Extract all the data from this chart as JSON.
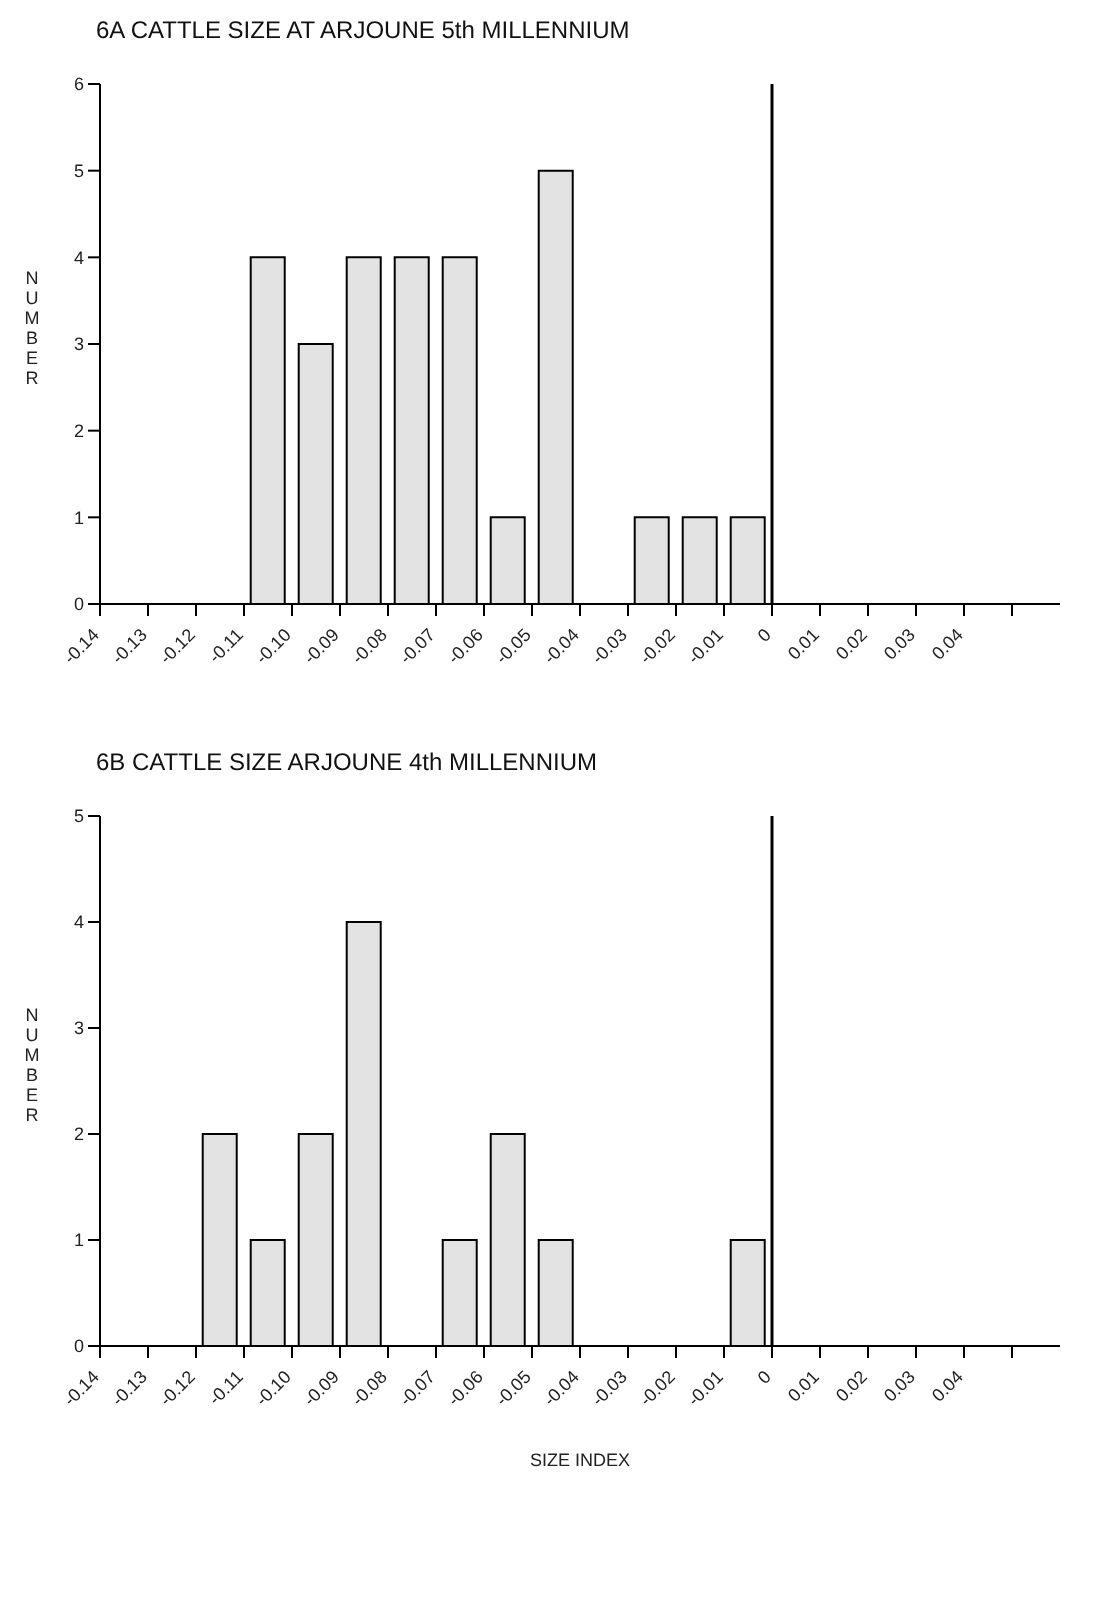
{
  "chart_data": [
    {
      "type": "histogram",
      "title": "6A CATTLE SIZE AT ARJOUNE 5th MILLENNIUM",
      "ylabel": "NUMBER",
      "color": "#e3e3e3",
      "bins": [
        -0.14,
        -0.13,
        -0.12,
        -0.11,
        -0.1,
        -0.09,
        -0.08,
        -0.07,
        -0.06,
        -0.05,
        -0.04,
        -0.03,
        -0.02,
        -0.01,
        0,
        0.01,
        0.02,
        0.03,
        0.04,
        0.05,
        0.06
      ],
      "values": [
        0,
        0,
        0,
        4,
        3,
        4,
        4,
        4,
        1,
        5,
        0,
        1,
        1,
        1,
        0,
        0,
        0,
        0,
        0,
        0
      ],
      "xlim": [
        -0.14,
        0.06
      ],
      "xticks": [
        {
          "value": -0.14,
          "label": "-0.14"
        },
        {
          "value": -0.13,
          "label": "-0.13"
        },
        {
          "value": -0.12,
          "label": "-0.12"
        },
        {
          "value": -0.11,
          "label": "-0.11"
        },
        {
          "value": -0.1,
          "label": "-0.10"
        },
        {
          "value": -0.09,
          "label": "-0.09"
        },
        {
          "value": -0.08,
          "label": "-0.08"
        },
        {
          "value": -0.07,
          "label": "-0.07"
        },
        {
          "value": -0.06,
          "label": "-0.06"
        },
        {
          "value": -0.05,
          "label": "-0.05"
        },
        {
          "value": -0.04,
          "label": "-0.04"
        },
        {
          "value": -0.03,
          "label": "-0.03"
        },
        {
          "value": -0.02,
          "label": "-0.02"
        },
        {
          "value": -0.01,
          "label": "-0.01"
        },
        0,
        0.01,
        0.02,
        0.03,
        0.04,
        {
          "value": 0.05,
          "label": null
        }
      ],
      "ylim": [
        0,
        6
      ],
      "yticks": [
        0,
        1,
        2,
        3,
        4,
        5,
        6
      ],
      "ref_lines": [
        {
          "axis": "x",
          "value": 0,
          "color": "#000000"
        }
      ]
    },
    {
      "type": "histogram",
      "title": "6B CATTLE SIZE ARJOUNE 4th MILLENNIUM",
      "xlabel": "SIZE INDEX",
      "ylabel": "NUMBER",
      "color": "#e3e3e3",
      "bins": [
        -0.14,
        -0.13,
        -0.12,
        -0.11,
        -0.1,
        -0.09,
        -0.08,
        -0.07,
        -0.06,
        -0.05,
        -0.04,
        -0.03,
        -0.02,
        -0.01,
        0,
        0.01,
        0.02,
        0.03,
        0.04,
        0.05,
        0.06
      ],
      "values": [
        0,
        0,
        2,
        1,
        2,
        4,
        0,
        1,
        2,
        1,
        0,
        0,
        0,
        1,
        0,
        0,
        0,
        0,
        0,
        0
      ],
      "xlim": [
        -0.14,
        0.06
      ],
      "xticks": [
        {
          "value": -0.14,
          "label": "-0.14"
        },
        {
          "value": -0.13,
          "label": "-0.13"
        },
        {
          "value": -0.12,
          "label": "-0.12"
        },
        {
          "value": -0.11,
          "label": "-0.11"
        },
        {
          "value": -0.1,
          "label": "-0.10"
        },
        {
          "value": -0.09,
          "label": "-0.09"
        },
        {
          "value": -0.08,
          "label": "-0.08"
        },
        {
          "value": -0.07,
          "label": "-0.07"
        },
        {
          "value": -0.06,
          "label": "-0.06"
        },
        {
          "value": -0.05,
          "label": "-0.05"
        },
        {
          "value": -0.04,
          "label": "-0.04"
        },
        {
          "value": -0.03,
          "label": "-0.03"
        },
        {
          "value": -0.02,
          "label": "-0.02"
        },
        {
          "value": -0.01,
          "label": "-0.01"
        },
        0,
        0.01,
        0.02,
        0.03,
        0.04,
        {
          "value": 0.05,
          "label": null
        }
      ],
      "ylim": [
        0,
        5
      ],
      "yticks": [
        0,
        1,
        2,
        3,
        4,
        5
      ],
      "ref_lines": [
        {
          "axis": "x",
          "value": 0,
          "color": "#000000"
        }
      ]
    }
  ]
}
